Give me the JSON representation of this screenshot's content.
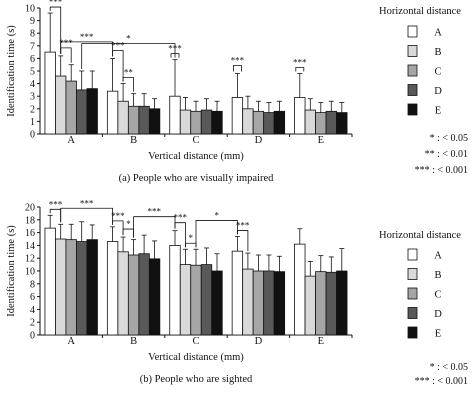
{
  "chart_data": [
    {
      "type": "bar",
      "panel_title": "(a) People who are visually impaired",
      "xlabel": "Vertical distance (mm)",
      "ylabel": "Identification time (s)",
      "ylim": [
        0,
        10
      ],
      "yticks": [
        0,
        1,
        2,
        3,
        4,
        5,
        6,
        7,
        8,
        9,
        10
      ],
      "categories": [
        "A",
        "B",
        "C",
        "D",
        "E"
      ],
      "legend_title": "Horizontal distance",
      "legend_position": "right",
      "series": [
        {
          "name": "A",
          "color": "#ffffff",
          "values": [
            6.5,
            3.4,
            3.0,
            2.9,
            2.9
          ],
          "errors": [
            3.1,
            2.6,
            2.9,
            1.9,
            1.9
          ]
        },
        {
          "name": "B",
          "color": "#d9d9d9",
          "values": [
            4.6,
            2.6,
            1.9,
            2.0,
            1.9
          ],
          "errors": [
            1.6,
            1.4,
            1.0,
            1.0,
            0.9
          ]
        },
        {
          "name": "C",
          "color": "#a6a6a6",
          "values": [
            4.2,
            2.2,
            1.8,
            1.8,
            1.7
          ],
          "errors": [
            1.3,
            1.0,
            0.8,
            0.8,
            0.8
          ]
        },
        {
          "name": "D",
          "color": "#595959",
          "values": [
            3.5,
            2.2,
            1.9,
            1.7,
            1.8
          ],
          "errors": [
            1.5,
            1.0,
            0.9,
            0.8,
            0.8
          ]
        },
        {
          "name": "E",
          "color": "#111111",
          "values": [
            3.6,
            2.0,
            1.8,
            1.8,
            1.7
          ],
          "errors": [
            1.4,
            0.8,
            0.8,
            0.8,
            0.8
          ]
        }
      ],
      "significance": [
        {
          "label": "***",
          "from": [
            0,
            0
          ],
          "to": [
            0,
            1
          ]
        },
        {
          "label": "***",
          "from": [
            0,
            1
          ],
          "to": [
            0,
            2
          ]
        },
        {
          "label": "***",
          "from": [
            0,
            1
          ],
          "to": [
            1,
            0
          ]
        },
        {
          "label": "***",
          "from": [
            1,
            0
          ],
          "to": [
            1,
            1
          ]
        },
        {
          "label": "**",
          "from": [
            1,
            1
          ],
          "to": [
            1,
            2
          ]
        },
        {
          "label": "*",
          "from": [
            0,
            3
          ],
          "to": [
            2,
            0
          ]
        },
        {
          "label": "***",
          "from": [
            2,
            0
          ],
          "to": [
            2,
            0
          ]
        },
        {
          "label": "***",
          "from": [
            3,
            0
          ],
          "to": [
            3,
            0
          ]
        },
        {
          "label": "***",
          "from": [
            4,
            0
          ],
          "to": [
            4,
            0
          ]
        }
      ],
      "sig_legend": [
        {
          "symbol": "*",
          "text": ": < 0.05"
        },
        {
          "symbol": "**",
          "text": ": < 0.01"
        },
        {
          "symbol": "***",
          "text": ": < 0.001"
        }
      ]
    },
    {
      "type": "bar",
      "panel_title": "(b) People who are sighted",
      "xlabel": "Vertical distance (mm)",
      "ylabel": "Identification time (s)",
      "ylim": [
        0,
        20
      ],
      "yticks": [
        0,
        2,
        4,
        6,
        8,
        10,
        12,
        14,
        16,
        18,
        20
      ],
      "categories": [
        "A",
        "B",
        "C",
        "D",
        "E"
      ],
      "legend_title": "Horizontal distance",
      "legend_position": "right",
      "series": [
        {
          "name": "A",
          "color": "#ffffff",
          "values": [
            16.7,
            14.6,
            14.0,
            13.1,
            14.2
          ],
          "errors": [
            2.0,
            2.3,
            2.3,
            2.3,
            2.4
          ]
        },
        {
          "name": "B",
          "color": "#d9d9d9",
          "values": [
            15.0,
            13.0,
            11.0,
            10.3,
            9.2
          ],
          "errors": [
            2.3,
            2.3,
            2.4,
            2.5,
            2.3
          ]
        },
        {
          "name": "C",
          "color": "#a6a6a6",
          "values": [
            14.9,
            12.5,
            10.9,
            10.0,
            9.9
          ],
          "errors": [
            2.4,
            2.4,
            2.5,
            2.5,
            2.5
          ]
        },
        {
          "name": "D",
          "color": "#595959",
          "values": [
            14.6,
            12.7,
            11.0,
            10.0,
            9.8
          ],
          "errors": [
            3.1,
            2.9,
            2.6,
            2.5,
            2.4
          ]
        },
        {
          "name": "E",
          "color": "#111111",
          "values": [
            14.9,
            11.9,
            10.0,
            9.9,
            10.0
          ],
          "errors": [
            2.3,
            2.8,
            2.7,
            2.4,
            3.5
          ]
        }
      ],
      "significance": [
        {
          "label": "***",
          "from": [
            0,
            0
          ],
          "to": [
            0,
            1
          ]
        },
        {
          "label": "***",
          "from": [
            0,
            1
          ],
          "to": [
            1,
            0
          ]
        },
        {
          "label": "***",
          "from": [
            1,
            0
          ],
          "to": [
            1,
            1
          ]
        },
        {
          "label": "*",
          "from": [
            1,
            1
          ],
          "to": [
            1,
            2
          ]
        },
        {
          "label": "***",
          "from": [
            1,
            2
          ],
          "to": [
            2,
            0
          ]
        },
        {
          "label": "***",
          "from": [
            2,
            0
          ],
          "to": [
            2,
            1
          ]
        },
        {
          "label": "*",
          "from": [
            2,
            1
          ],
          "to": [
            2,
            2
          ]
        },
        {
          "label": "*",
          "from": [
            2,
            2
          ],
          "to": [
            3,
            0
          ]
        },
        {
          "label": "***",
          "from": [
            3,
            0
          ],
          "to": [
            3,
            1
          ]
        }
      ],
      "sig_legend": [
        {
          "symbol": "*",
          "text": ": < 0.05"
        },
        {
          "symbol": "***",
          "text": ": < 0.001"
        }
      ]
    }
  ]
}
